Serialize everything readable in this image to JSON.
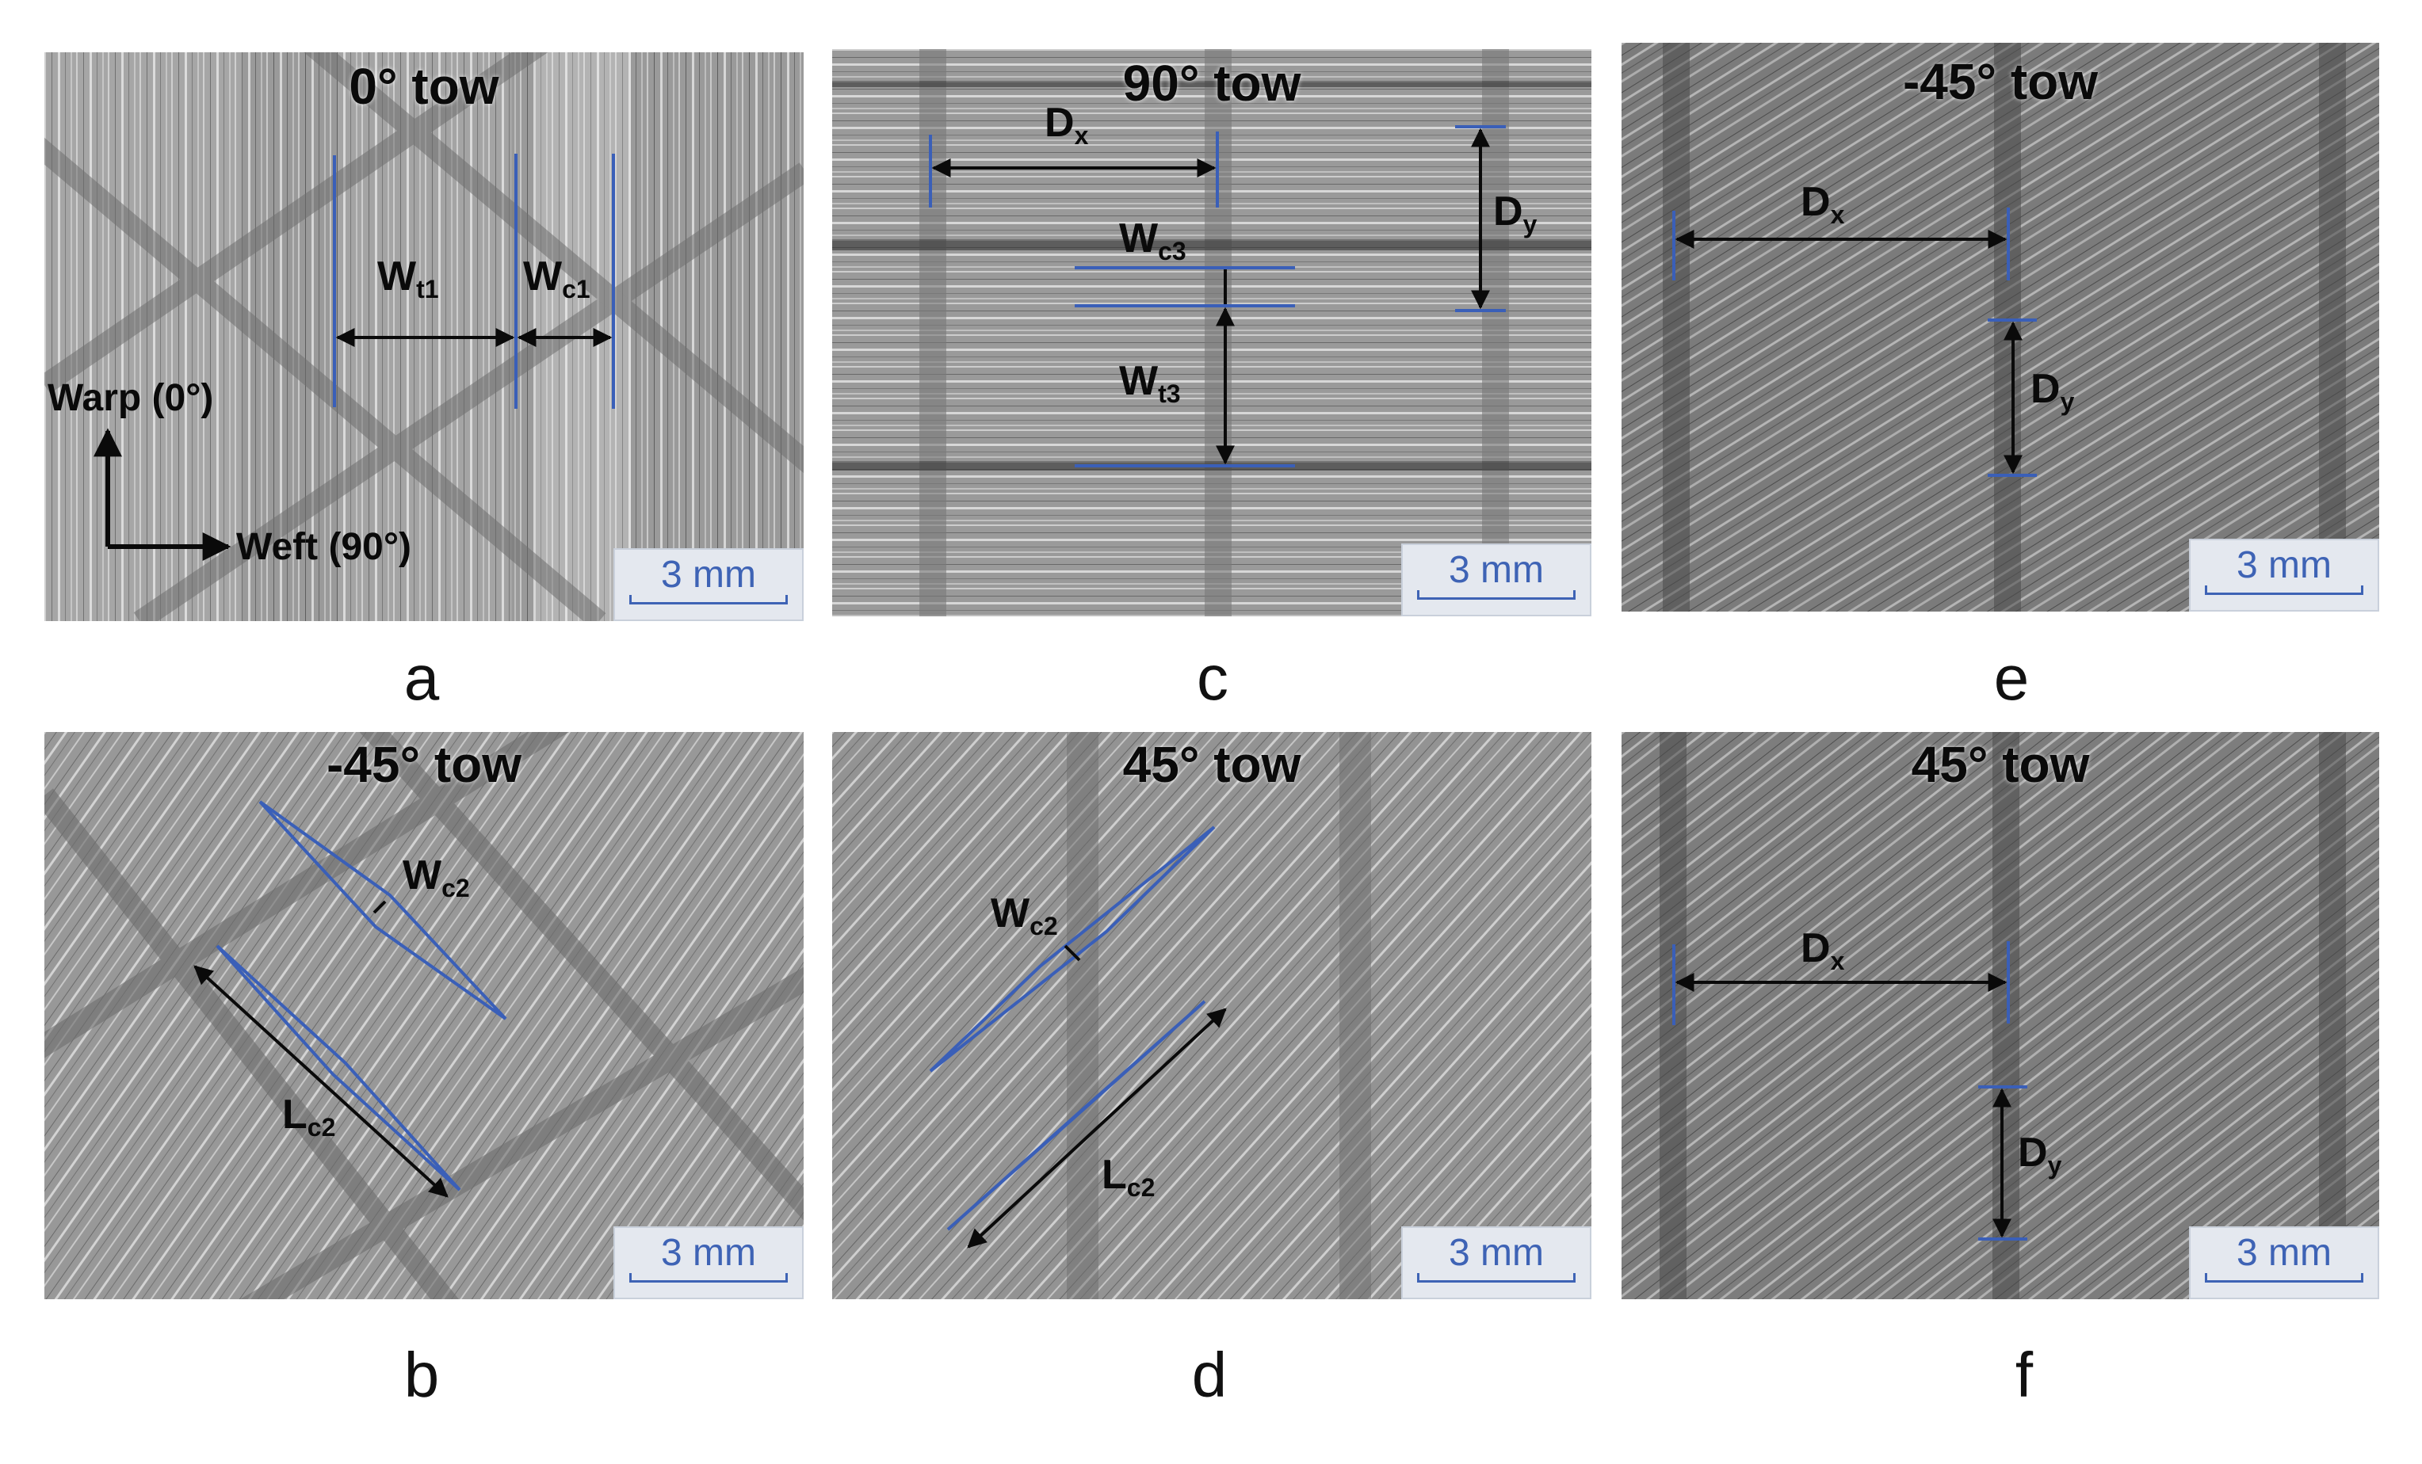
{
  "panels": {
    "a": {
      "title": "0° tow",
      "letter": "a",
      "scale": "3 mm",
      "labels": {
        "wt1": "W",
        "wt1_sub": "t1",
        "wc1": "W",
        "wc1_sub": "c1",
        "warp": "Warp (0°)",
        "weft": "Weft (90°)"
      }
    },
    "b": {
      "title": "-45° tow",
      "letter": "b",
      "scale": "3 mm",
      "labels": {
        "wc2": "W",
        "wc2_sub": "c2",
        "lc2": "L",
        "lc2_sub": "c2"
      }
    },
    "c": {
      "title": "90° tow",
      "letter": "c",
      "scale": "3 mm",
      "labels": {
        "dx": "D",
        "dx_sub": "x",
        "dy": "D",
        "dy_sub": "y",
        "wc3": "W",
        "wc3_sub": "c3",
        "wt3": "W",
        "wt3_sub": "t3"
      }
    },
    "d": {
      "title": "45° tow",
      "letter": "d",
      "scale": "3 mm",
      "labels": {
        "wc2": "W",
        "wc2_sub": "c2",
        "lc2": "L",
        "lc2_sub": "c2"
      }
    },
    "e": {
      "title": "-45° tow",
      "letter": "e",
      "scale": "3 mm",
      "labels": {
        "dx": "D",
        "dx_sub": "x",
        "dy": "D",
        "dy_sub": "y"
      }
    },
    "f": {
      "title": "45° tow",
      "letter": "f",
      "scale": "3 mm",
      "labels": {
        "dx": "D",
        "dx_sub": "x",
        "dy": "D",
        "dy_sub": "y"
      }
    }
  },
  "colors": {
    "annotation_blue": "#3a5fb8",
    "arrow_black": "#0a0a0a"
  }
}
